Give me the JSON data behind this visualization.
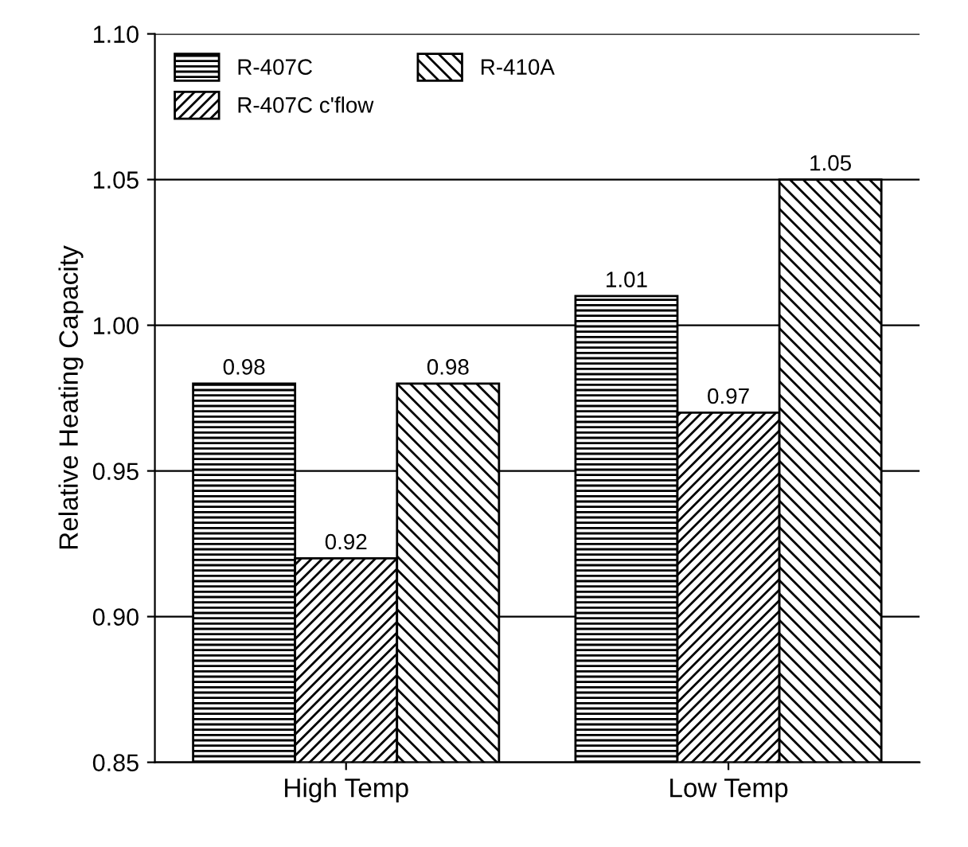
{
  "chart_data": {
    "type": "bar",
    "ylabel": "Relative Heating Capacity",
    "categories": [
      "High Temp",
      "Low Temp"
    ],
    "series": [
      {
        "name": "R-407C",
        "color": "#000000",
        "values": [
          0.98,
          1.01
        ]
      },
      {
        "name": "R-407C c'flow",
        "color": "#000000",
        "values": [
          0.92,
          0.97
        ]
      },
      {
        "name": "R-410A",
        "color": "#000000",
        "values": [
          0.98,
          1.05
        ]
      }
    ],
    "ylim": [
      0.85,
      1.1
    ],
    "yticks": [
      0.85,
      {
        "value": 0.9,
        "label": "0.90"
      },
      0.95,
      {
        "value": 1.0,
        "label": "1.00"
      },
      1.05,
      {
        "value": 1.1,
        "label": "1.10"
      }
    ],
    "grid": "y",
    "legend": "top left",
    "data_labels": true
  }
}
